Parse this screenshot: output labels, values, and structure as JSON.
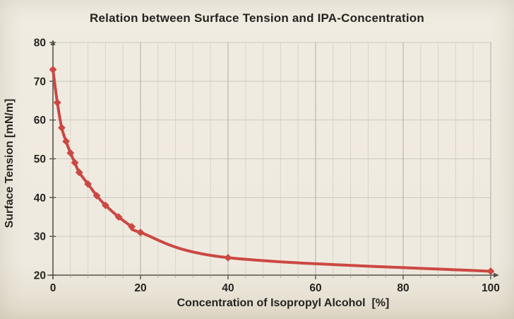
{
  "chart_data": {
    "type": "line",
    "title": "Relation between Surface Tension and IPA-Concentration",
    "xlabel": "Concentration of Isopropyl Alcohol  [%]",
    "ylabel": "Surface Tension [mN/m]",
    "x": [
      0,
      1,
      2,
      3,
      4,
      5,
      6,
      8,
      10,
      12,
      15,
      18,
      20,
      40,
      100
    ],
    "values": [
      73,
      64.5,
      58,
      54.5,
      51.5,
      49,
      46.5,
      43.5,
      40.5,
      38,
      35,
      32.5,
      31,
      24.5,
      21
    ],
    "xlim": [
      0,
      100
    ],
    "ylim": [
      20,
      80
    ],
    "x_ticks": [
      0,
      20,
      40,
      60,
      80,
      100
    ],
    "y_ticks": [
      20,
      30,
      40,
      50,
      60,
      70,
      80
    ],
    "x_minor_step": 4,
    "grid": true,
    "legend": false,
    "line_smooth": true,
    "marker": "diamond",
    "colors": {
      "background": "#EFEAE0",
      "line": "#CB4843",
      "grid_minor": "#D9D5C9",
      "grid_major": "#B0ACA1",
      "grid_horizontal": "#CDC9BD",
      "axis": "#56544F",
      "text": "#262420"
    }
  }
}
